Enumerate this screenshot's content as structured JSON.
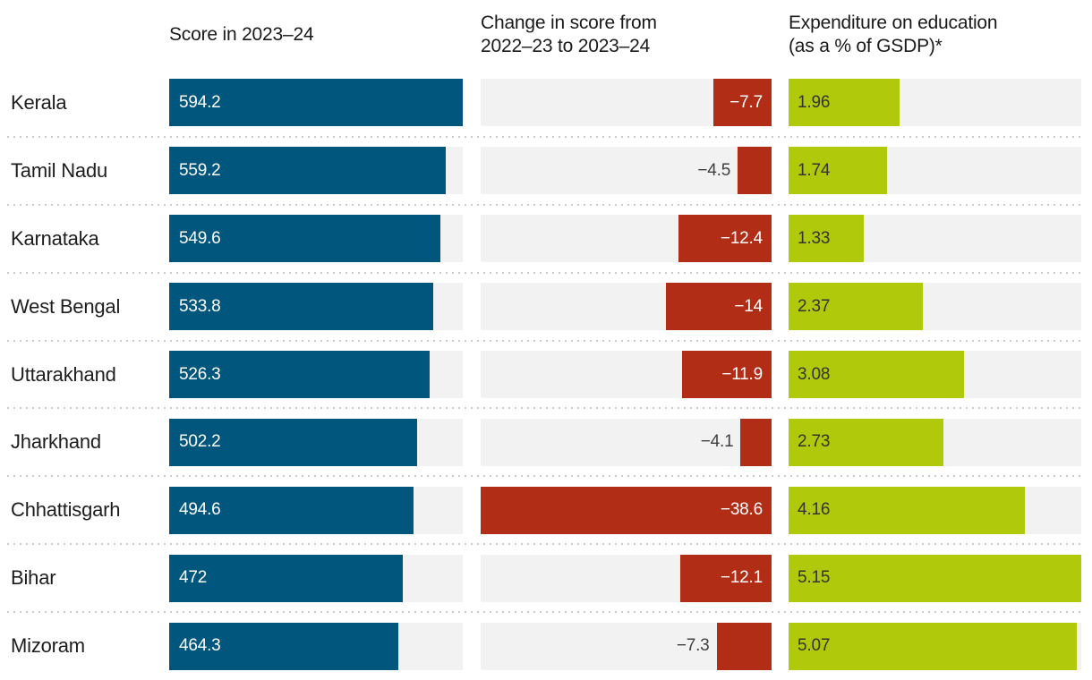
{
  "chart_data": {
    "type": "bar",
    "orientation": "horizontal",
    "layout": "three-column bar table, one row per state, dotted separators between rows",
    "legend_position": "none",
    "grid": false,
    "colors": {
      "score": "#00567d",
      "change": "#b22d16",
      "expenditure": "#b0ca0b",
      "track": "#f2f2f2"
    },
    "columns": {
      "score": {
        "header": "Score in 2023–24",
        "axis_range": [
          0,
          594.2
        ]
      },
      "change": {
        "header_line1": "Change in score from",
        "header_line2": "2022–23 to 2023–24",
        "axis_range": [
          -38.6,
          0
        ],
        "bar_alignment": "right"
      },
      "expenditure": {
        "header_line1": "Expenditure on education",
        "header_line2": "(as a % of GSDP)*",
        "axis_range": [
          0,
          5.15
        ]
      }
    },
    "categories": [
      "Kerala",
      "Tamil Nadu",
      "Karnataka",
      "West Bengal",
      "Uttarakhand",
      "Jharkhand",
      "Chhattisgarh",
      "Bihar",
      "Mizoram"
    ],
    "series": [
      {
        "name": "Score in 2023–24",
        "values": [
          594.2,
          559.2,
          549.6,
          533.8,
          526.3,
          502.2,
          494.6,
          472,
          464.3
        ]
      },
      {
        "name": "Change in score from 2022–23 to 2023–24",
        "values": [
          -7.7,
          -4.5,
          -12.4,
          -14,
          -11.9,
          -4.1,
          -38.6,
          -12.1,
          -7.3
        ]
      },
      {
        "name": "Expenditure on education (as a % of GSDP)*",
        "values": [
          1.96,
          1.74,
          1.33,
          2.37,
          3.08,
          2.73,
          4.16,
          5.15,
          5.07
        ]
      }
    ],
    "rows": [
      {
        "state": "Kerala",
        "score": 594.2,
        "score_label": "594.2",
        "change": -7.7,
        "change_label": "−7.7",
        "change_label_inside": true,
        "expenditure": 1.96,
        "expenditure_label": "1.96"
      },
      {
        "state": "Tamil Nadu",
        "score": 559.2,
        "score_label": "559.2",
        "change": -4.5,
        "change_label": "−4.5",
        "change_label_inside": false,
        "expenditure": 1.74,
        "expenditure_label": "1.74"
      },
      {
        "state": "Karnataka",
        "score": 549.6,
        "score_label": "549.6",
        "change": -12.4,
        "change_label": "−12.4",
        "change_label_inside": true,
        "expenditure": 1.33,
        "expenditure_label": "1.33"
      },
      {
        "state": "West Bengal",
        "score": 533.8,
        "score_label": "533.8",
        "change": -14,
        "change_label": "−14",
        "change_label_inside": true,
        "expenditure": 2.37,
        "expenditure_label": "2.37"
      },
      {
        "state": "Uttarakhand",
        "score": 526.3,
        "score_label": "526.3",
        "change": -11.9,
        "change_label": "−11.9",
        "change_label_inside": true,
        "expenditure": 3.08,
        "expenditure_label": "3.08"
      },
      {
        "state": "Jharkhand",
        "score": 502.2,
        "score_label": "502.2",
        "change": -4.1,
        "change_label": "−4.1",
        "change_label_inside": false,
        "expenditure": 2.73,
        "expenditure_label": "2.73"
      },
      {
        "state": "Chhattisgarh",
        "score": 494.6,
        "score_label": "494.6",
        "change": -38.6,
        "change_label": "−38.6",
        "change_label_inside": true,
        "expenditure": 4.16,
        "expenditure_label": "4.16"
      },
      {
        "state": "Bihar",
        "score": 472,
        "score_label": "472",
        "change": -12.1,
        "change_label": "−12.1",
        "change_label_inside": true,
        "expenditure": 5.15,
        "expenditure_label": "5.15"
      },
      {
        "state": "Mizoram",
        "score": 464.3,
        "score_label": "464.3",
        "change": -7.3,
        "change_label": "−7.3",
        "change_label_inside": false,
        "expenditure": 5.07,
        "expenditure_label": "5.07"
      }
    ]
  }
}
